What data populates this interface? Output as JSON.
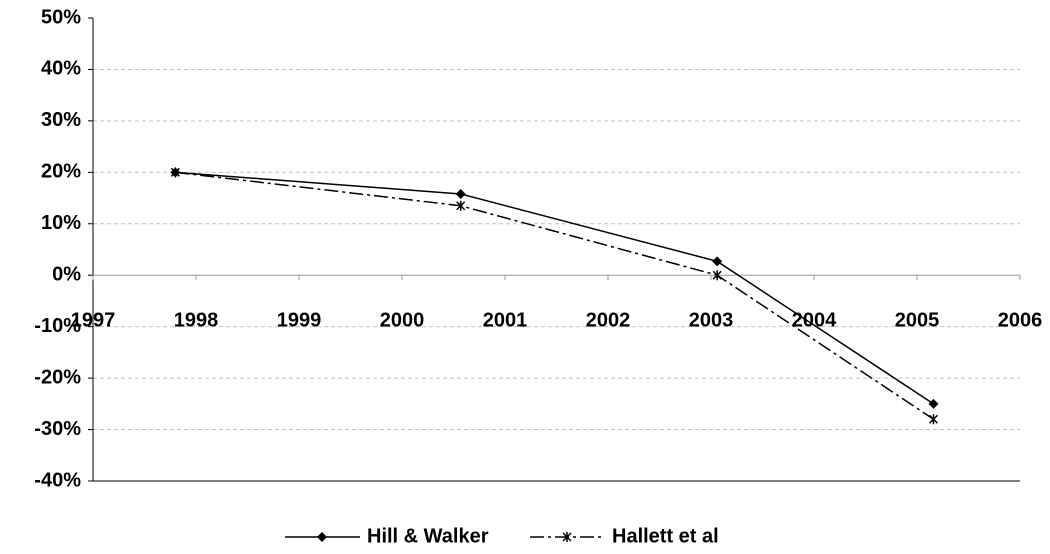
{
  "chart_data": {
    "type": "line",
    "x": [
      1997.8,
      2000.57,
      2003.06,
      2005.16
    ],
    "series": [
      {
        "name": "Hill & Walker",
        "color": "#000000",
        "values": [
          20,
          15.8,
          2.7,
          -25
        ]
      },
      {
        "name": "Hallett et al",
        "color": "#000000",
        "values": [
          20,
          13.5,
          0,
          -28
        ]
      }
    ],
    "xlim": [
      1997,
      2006
    ],
    "xticks": [
      1997,
      1998,
      1999,
      2000,
      2001,
      2002,
      2003,
      2004,
      2005,
      2006
    ],
    "ylim": [
      -40,
      50
    ],
    "yticks": [
      {
        "value": -40,
        "label": "-40%"
      },
      {
        "value": -30,
        "label": "-30%"
      },
      {
        "value": -20,
        "label": "-20%"
      },
      {
        "value": -10,
        "label": "-10%"
      },
      {
        "value": 0,
        "label": "0%"
      },
      {
        "value": 10,
        "label": "10%"
      },
      {
        "value": 20,
        "label": "20%"
      },
      {
        "value": 30,
        "label": "30%"
      },
      {
        "value": 40,
        "label": "40%"
      },
      {
        "value": 50,
        "label": "50%"
      }
    ],
    "grid": true,
    "legend": "bottom"
  }
}
